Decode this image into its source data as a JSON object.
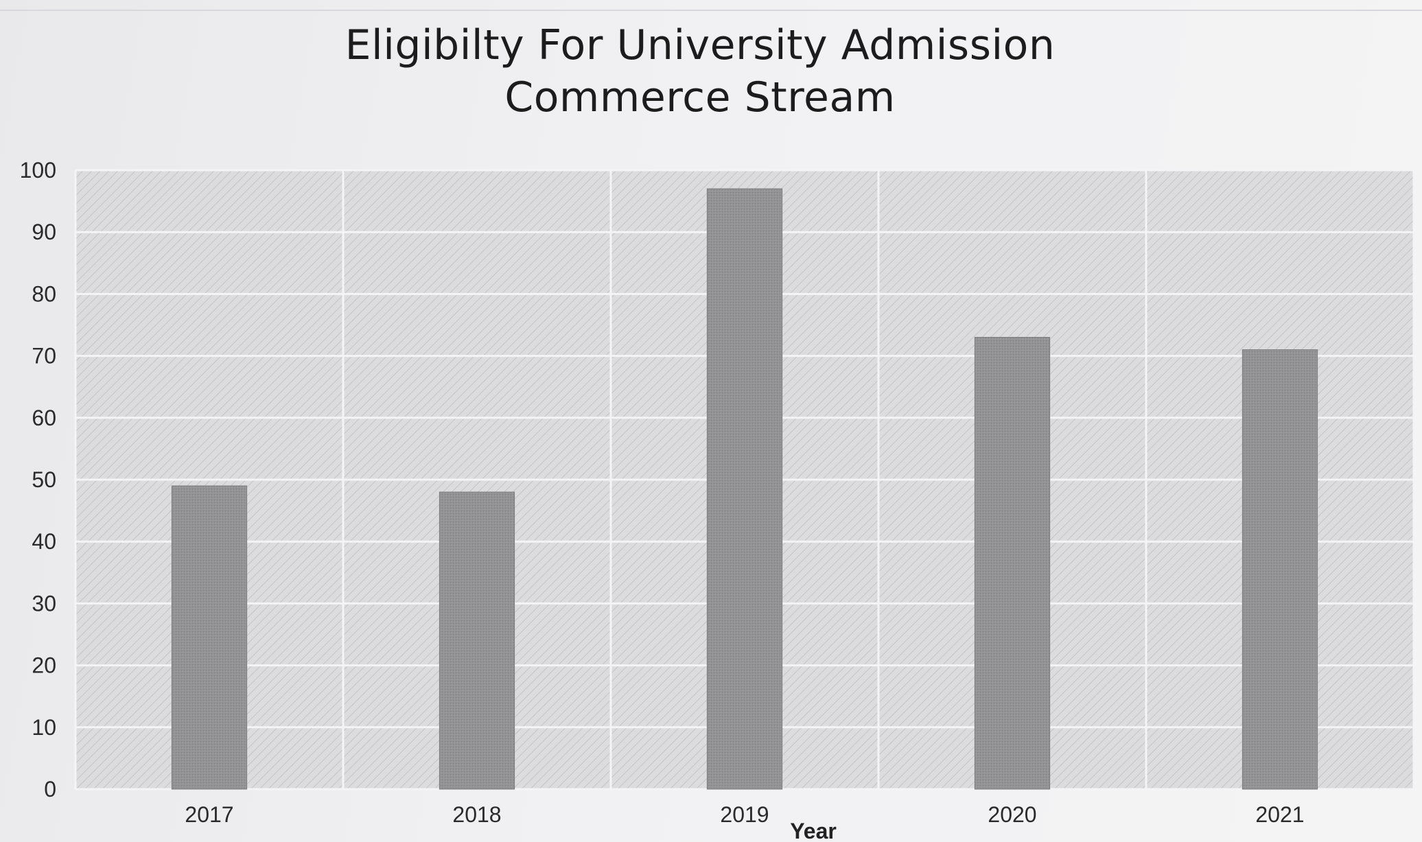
{
  "chart_data": {
    "type": "bar",
    "title": "Eligibilty For University Admission",
    "subtitle": "Commerce Stream",
    "xlabel": "Year",
    "ylabel": "",
    "categories": [
      "2017",
      "2018",
      "2019",
      "2020",
      "2021"
    ],
    "values": [
      49,
      48,
      97,
      73,
      71
    ],
    "ylim": [
      0,
      100
    ],
    "yticks": [
      0,
      10,
      20,
      30,
      40,
      50,
      60,
      70,
      80,
      90,
      100
    ],
    "grid": true,
    "colors": {
      "bar": "#8f8f91",
      "plot_background": "#d9d9db",
      "gridline": "#f4f4f6"
    }
  }
}
